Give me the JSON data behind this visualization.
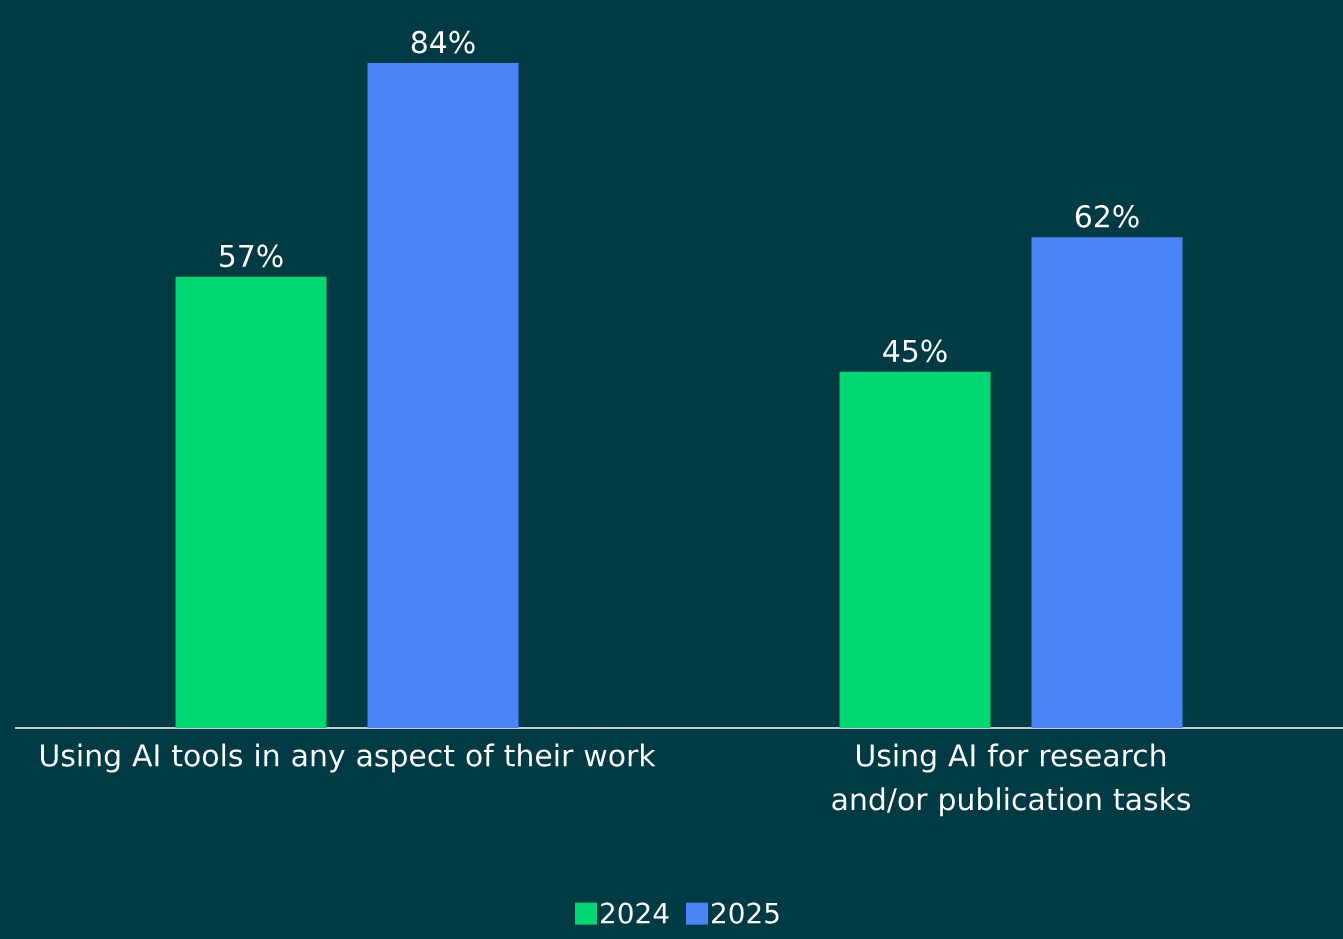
{
  "chart_data": {
    "type": "bar",
    "categories": [
      "Using AI tools in any aspect of their work",
      "Using AI for research and/or publication tasks"
    ],
    "series": [
      {
        "name": "2024",
        "color": "#00d672",
        "values": [
          57,
          45
        ],
        "value_labels": [
          "57%",
          "45%"
        ]
      },
      {
        "name": "2025",
        "color": "#4a86f7",
        "values": [
          84,
          62
        ],
        "value_labels": [
          "84%",
          "62%"
        ]
      }
    ],
    "legend": "bottom"
  }
}
